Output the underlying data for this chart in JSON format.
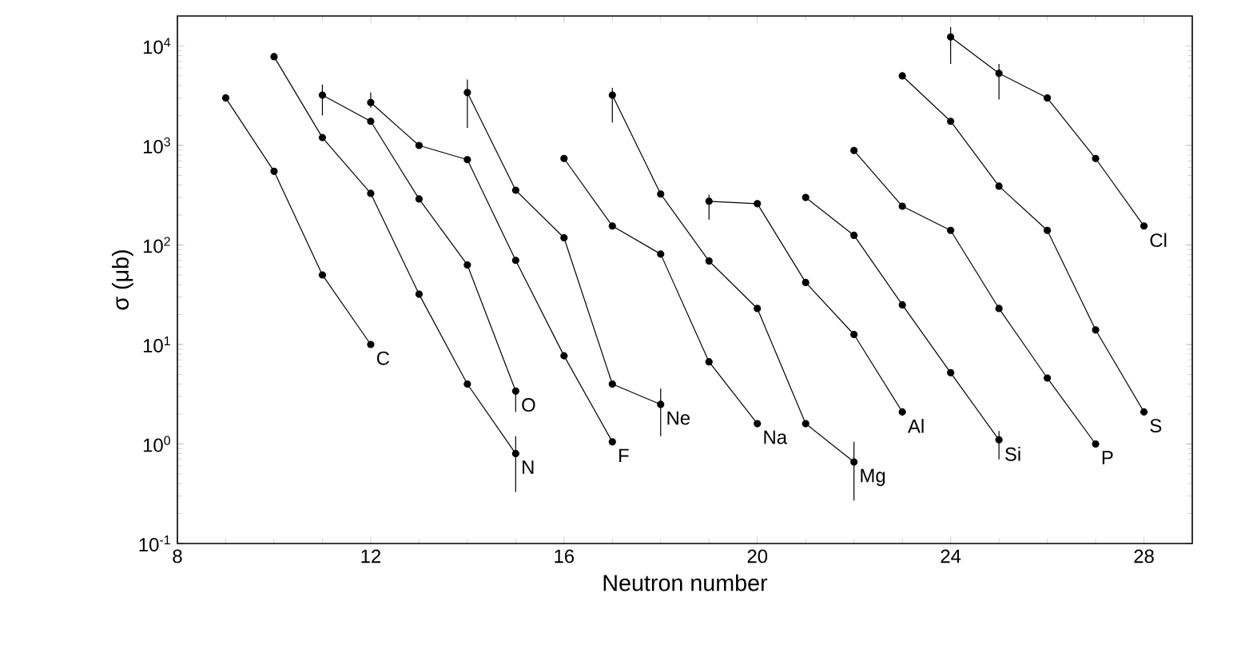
{
  "chart_data": {
    "type": "line",
    "xlabel": "Neutron number",
    "ylabel": "σ (μb)",
    "log": "y",
    "xlim": [
      8,
      29
    ],
    "ylim": [
      0.1,
      20000
    ],
    "xticks": [
      8,
      12,
      16,
      20,
      24,
      28
    ],
    "yticks": [
      {
        "value": 0.1,
        "label": "10$^{-1}$"
      },
      {
        "value": 1,
        "label": "10$^{0}$"
      },
      {
        "value": 10,
        "label": "10$^{1}$"
      },
      {
        "value": 100,
        "label": "10$^{2}$"
      },
      {
        "value": 1000,
        "label": "10$^{3}$"
      },
      {
        "value": 10000,
        "label": "10$^{4}$"
      }
    ],
    "marker": "circle",
    "line_style": "solid",
    "grid": false,
    "legend": false,
    "series": [
      {
        "name": "C",
        "color": "#000000",
        "x": [
          9,
          10,
          11,
          12
        ],
        "values": [
          3000,
          550,
          50,
          10
        ]
      },
      {
        "name": "N",
        "color": "#000000",
        "x": [
          10,
          11,
          12,
          13,
          14,
          15
        ],
        "values": [
          7800,
          1200,
          330,
          32,
          4,
          0.8
        ],
        "errors": [
          null,
          null,
          null,
          null,
          null,
          [
            0.33,
            1.2
          ]
        ]
      },
      {
        "name": "O",
        "color": "#000000",
        "x": [
          11,
          12,
          13,
          14,
          15
        ],
        "values": [
          3200,
          1750,
          290,
          63,
          3.4
        ],
        "errors": [
          [
            2000,
            4100
          ],
          null,
          null,
          null,
          [
            2.1,
            3.4
          ]
        ]
      },
      {
        "name": "F",
        "color": "#000000",
        "x": [
          12,
          13,
          14,
          15,
          16,
          17
        ],
        "values": [
          2700,
          1000,
          720,
          70,
          7.7,
          1.05
        ],
        "errors": [
          [
            2400,
            3400
          ],
          null,
          null,
          null,
          null,
          null
        ]
      },
      {
        "name": "Ne",
        "color": "#000000",
        "x": [
          14,
          15,
          16,
          17,
          18
        ],
        "values": [
          3400,
          355,
          118,
          4,
          2.5
        ],
        "errors": [
          [
            1500,
            4600
          ],
          null,
          null,
          null,
          [
            1.2,
            3.6
          ]
        ]
      },
      {
        "name": "Na",
        "color": "#000000",
        "x": [
          16,
          17,
          18,
          19,
          20
        ],
        "values": [
          740,
          155,
          81,
          6.7,
          1.6
        ]
      },
      {
        "name": "Mg",
        "color": "#000000",
        "x": [
          17,
          18,
          19,
          20,
          21,
          22
        ],
        "values": [
          3200,
          325,
          69,
          23,
          1.6,
          0.66
        ],
        "errors": [
          [
            1700,
            3800
          ],
          null,
          null,
          null,
          null,
          [
            0.27,
            1.05
          ]
        ]
      },
      {
        "name": "Al",
        "color": "#000000",
        "x": [
          19,
          20,
          21,
          22,
          23
        ],
        "values": [
          275,
          260,
          42,
          12.6,
          2.1
        ],
        "errors": [
          [
            180,
            320
          ],
          null,
          null,
          null,
          null
        ]
      },
      {
        "name": "Si",
        "color": "#000000",
        "x": [
          21,
          22,
          23,
          24,
          25
        ],
        "values": [
          300,
          125,
          25,
          5.2,
          1.1
        ],
        "errors": [
          null,
          null,
          null,
          null,
          [
            0.7,
            1.35
          ]
        ]
      },
      {
        "name": "P",
        "color": "#000000",
        "x": [
          22,
          23,
          24,
          25,
          26,
          27
        ],
        "values": [
          890,
          245,
          140,
          23,
          4.6,
          1.0
        ]
      },
      {
        "name": "S",
        "color": "#000000",
        "x": [
          23,
          24,
          25,
          26,
          27,
          28
        ],
        "values": [
          5000,
          1750,
          390,
          140,
          14,
          2.1
        ]
      },
      {
        "name": "Cl",
        "color": "#000000",
        "x": [
          24,
          25,
          26,
          27,
          28
        ],
        "values": [
          12300,
          5300,
          3000,
          740,
          155
        ],
        "errors": [
          [
            6600,
            15500
          ],
          [
            2900,
            6600
          ],
          null,
          null,
          null
        ]
      }
    ]
  }
}
